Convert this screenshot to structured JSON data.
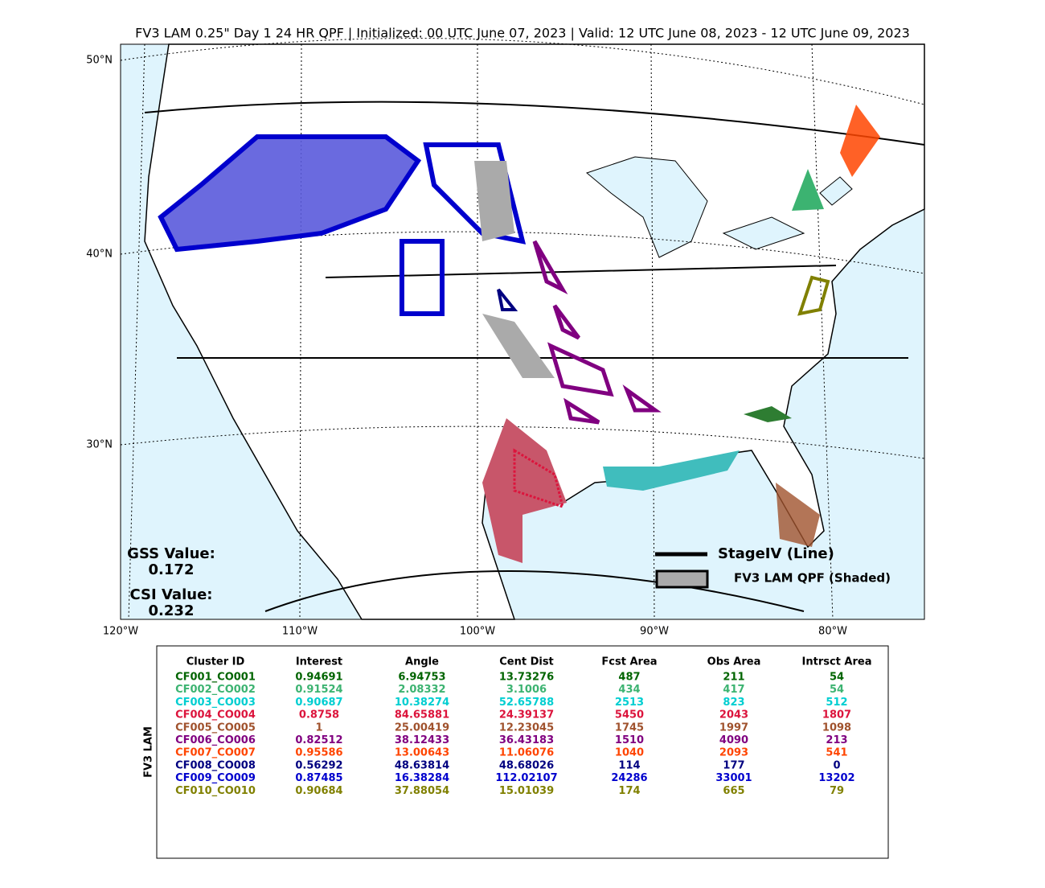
{
  "header": {
    "title": "FV3 LAM 0.25\" Day 1 24 HR QPF | Initialized: 00 UTC June 07, 2023 | Valid: 12 UTC June 08, 2023 - 12 UTC June 09, 2023"
  },
  "map": {
    "lat_labels": [
      "50°N",
      "40°N",
      "30°N"
    ],
    "lon_labels": [
      "120°W",
      "110°W",
      "100°W",
      "90°W",
      "80°W"
    ],
    "legend": {
      "line": "StageIV (Line)",
      "shaded": "FV3 LAM QPF (Shaded)"
    },
    "scores": {
      "gss_label": "GSS Value:",
      "gss": "0.172",
      "csi_label": "CSI Value:",
      "csi": "0.232"
    }
  },
  "table": {
    "side_label": "FV3 LAM",
    "columns": [
      "Cluster ID",
      "Interest",
      "Angle",
      "Cent Dist",
      "Fcst Area",
      "Obs Area",
      "Intrsct Area"
    ],
    "row_colors": [
      "#006400",
      "#3cb371",
      "#00ced1",
      "#dc143c",
      "#a0522d",
      "#800080",
      "#ff4500",
      "#000080",
      "#0000cd",
      "#808000"
    ],
    "rows": [
      [
        "CF001_CO001",
        "0.94691",
        "6.94753",
        "13.73276",
        "487",
        "211",
        "54"
      ],
      [
        "CF002_CO002",
        "0.91524",
        "2.08332",
        "3.1006",
        "434",
        "417",
        "54"
      ],
      [
        "CF003_CO003",
        "0.90687",
        "10.38274",
        "52.65788",
        "2513",
        "823",
        "512"
      ],
      [
        "CF004_CO004",
        "0.8758",
        "84.65881",
        "24.39137",
        "5450",
        "2043",
        "1807"
      ],
      [
        "CF005_CO005",
        "1",
        "25.00419",
        "12.23045",
        "1745",
        "1997",
        "1098"
      ],
      [
        "CF006_CO006",
        "0.82512",
        "38.12433",
        "36.43183",
        "1510",
        "4090",
        "213"
      ],
      [
        "CF007_CO007",
        "0.95586",
        "13.00643",
        "11.06076",
        "1040",
        "2093",
        "541"
      ],
      [
        "CF008_CO008",
        "0.56292",
        "48.63814",
        "48.68026",
        "114",
        "177",
        "0"
      ],
      [
        "CF009_CO009",
        "0.87485",
        "16.38284",
        "112.02107",
        "24286",
        "33001",
        "13202"
      ],
      [
        "CF010_CO010",
        "0.90684",
        "37.88054",
        "15.01039",
        "174",
        "665",
        "79"
      ]
    ]
  }
}
